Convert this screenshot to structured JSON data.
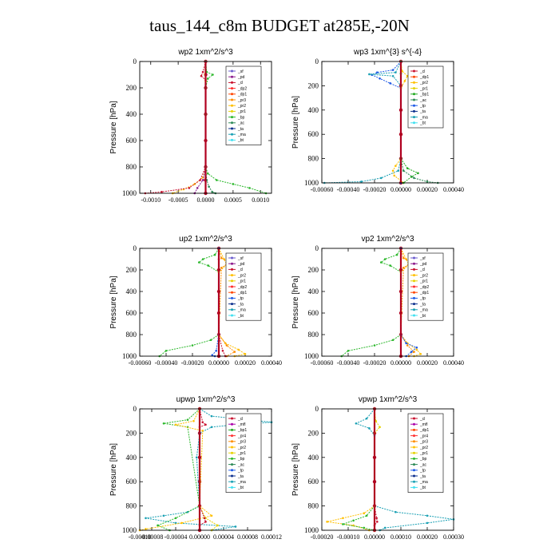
{
  "figure": {
    "title": "taus_144_c8m  BUDGET at285E,-20N"
  },
  "colors": {
    "sf": "#6a5acd",
    "pd": "#8b1a8b",
    "cl": "#c8102e",
    "dp2": "#ff2a2a",
    "dp1": "#ff4500",
    "pr3": "#ff8c00",
    "pr2": "#ffc000",
    "pr1": "#e6d200",
    "bp": "#2db82d",
    "ac": "#2e8b57",
    "tp": "#1e5ae6",
    "ta": "#0a2d8c",
    "ma": "#1aa0b4",
    "bt": "#40e0f0",
    "pr4": "#ff3030",
    "bp1": "#22aa22",
    "mfl": "#aa00aa",
    "budget": "#b00020"
  },
  "chart_data": [
    {
      "type": "line",
      "title": "wp2   1xm^2/s^3",
      "ylabel": "Pressure  [hPa]",
      "xlim": [
        -0.0012,
        0.0012
      ],
      "ylim": [
        1000,
        0
      ],
      "x_ticks": [
        "-0.0010",
        "-0.0005",
        "0.0000",
        "0.0005",
        "0.0010"
      ],
      "x_tick_values": [
        -0.001,
        -0.0005,
        0,
        0.0005,
        0.001
      ],
      "y_ticks": [
        "0",
        "200",
        "400",
        "600",
        "800",
        "1000"
      ],
      "legend": [
        "sf",
        "pd",
        "cl",
        "dp2",
        "dp1",
        "pr3",
        "pr2",
        "pr1",
        "bp",
        "ac",
        "ta",
        "ma",
        "bt"
      ],
      "legend_position": "top-right",
      "series": [
        {
          "name": "bt",
          "key": "budget",
          "p": [
            0,
            100,
            200,
            400,
            600,
            800,
            900,
            1000
          ],
          "x": [
            0,
            0,
            0,
            0,
            0,
            0,
            0,
            0
          ]
        },
        {
          "name": "pr1",
          "key": "bp",
          "p": [
            0,
            80,
            100,
            130,
            200,
            400,
            800,
            850,
            900,
            930,
            960,
            1000
          ],
          "x": [
            0,
            2e-05,
            0.00013,
            4e-05,
            0,
            0,
            0,
            4e-05,
            0.0002,
            0.0005,
            0.0008,
            0.0011
          ]
        },
        {
          "name": "bp",
          "key": "pr2",
          "p": [
            0,
            100,
            150,
            800,
            880,
            930,
            970,
            1000
          ],
          "x": [
            0,
            -1e-05,
            0,
            0,
            -5e-05,
            -0.0002,
            -0.0004,
            -0.0006
          ]
        },
        {
          "name": "dp1",
          "key": "cl",
          "p": [
            0,
            80,
            110,
            140,
            800,
            900,
            960,
            990,
            1000
          ],
          "x": [
            0,
            -5e-05,
            -8e-05,
            0,
            0,
            -0.0001,
            -0.0003,
            -0.0008,
            -0.0011
          ]
        },
        {
          "name": "pd",
          "key": "pd",
          "p": [
            0,
            100,
            800,
            900,
            960,
            1000
          ],
          "x": [
            0,
            0,
            0,
            -5e-05,
            -0.00015,
            -0.0002
          ]
        },
        {
          "name": "ac",
          "key": "ac",
          "p": [
            0,
            800,
            900,
            950,
            990,
            1000
          ],
          "x": [
            0,
            0,
            2e-05,
            6e-05,
            0.00012,
            0.00018
          ]
        }
      ]
    },
    {
      "type": "line",
      "title": "wp3   1xm^{3} s^{-4}",
      "ylabel": "Pressure  [hPa]",
      "xlim": [
        -0.0006,
        0.0004
      ],
      "ylim": [
        1000,
        0
      ],
      "x_ticks": [
        "-0.00060",
        "-0.00040",
        "-0.00020",
        "0.00000",
        "0.00020",
        "0.00040"
      ],
      "x_tick_values": [
        -0.0006,
        -0.0004,
        -0.0002,
        0,
        0.0002,
        0.0004
      ],
      "y_ticks": [
        "0",
        "200",
        "400",
        "600",
        "800",
        "1000"
      ],
      "legend": [
        "cl",
        "dp1",
        "pr2",
        "pr1",
        "bp1",
        "ac",
        "tp",
        "ta",
        "ma",
        "bt"
      ],
      "legend_position": "top-right",
      "series": [
        {
          "name": "bt",
          "key": "budget",
          "p": [
            0,
            200,
            400,
            600,
            800,
            1000
          ],
          "x": [
            0,
            0,
            0,
            0,
            0,
            0
          ]
        },
        {
          "name": "tp",
          "key": "tp",
          "p": [
            0,
            70,
            90,
            110,
            140,
            180,
            220,
            800,
            1000
          ],
          "x": [
            0,
            -6e-05,
            -0.00018,
            -0.00022,
            -0.00016,
            -8e-05,
            0,
            0,
            0
          ]
        },
        {
          "name": "ma",
          "key": "ma",
          "p": [
            0,
            90,
            105,
            120,
            200,
            800,
            900,
            960,
            990,
            1000
          ],
          "x": [
            0,
            -4e-05,
            -0.00024,
            -6e-05,
            0,
            0,
            -2e-05,
            -0.00015,
            -0.0003,
            -0.00058
          ]
        },
        {
          "name": "pr2",
          "key": "pr2",
          "p": [
            0,
            80,
            120,
            160,
            220,
            800,
            860,
            900,
            940,
            1000
          ],
          "x": [
            0,
            1e-05,
            5e-05,
            3e-05,
            0,
            0,
            -4e-05,
            -6e-05,
            -5e-05,
            2e-05
          ]
        },
        {
          "name": "bp1",
          "key": "bp1",
          "p": [
            0,
            100,
            800,
            880,
            920,
            950,
            1000
          ],
          "x": [
            0,
            0,
            0,
            5e-05,
            0.00013,
            8e-05,
            2e-05
          ]
        },
        {
          "name": "ac",
          "key": "ac",
          "p": [
            0,
            100,
            800,
            900,
            960,
            990,
            1000
          ],
          "x": [
            0,
            0,
            0,
            2e-05,
            0.0001,
            0.0002,
            0.00028
          ]
        }
      ]
    },
    {
      "type": "line",
      "title": "up2   1xm^2/s^3",
      "ylabel": "Pressure  [hPa]",
      "xlim": [
        -0.0006,
        0.0004
      ],
      "ylim": [
        1000,
        0
      ],
      "x_ticks": [
        "-0.00060",
        "-0.00040",
        "-0.00020",
        "0.00000",
        "0.00020",
        "0.00040"
      ],
      "x_tick_values": [
        -0.0006,
        -0.0004,
        -0.0002,
        0,
        0.0002,
        0.0004
      ],
      "y_ticks": [
        "0",
        "200",
        "400",
        "600",
        "800",
        "1000"
      ],
      "legend": [
        "sf",
        "pd",
        "cl",
        "pr2",
        "pr1",
        "dp2",
        "dp1",
        "tp",
        "ta",
        "ma",
        "bt"
      ],
      "legend_position": "top-right",
      "series": [
        {
          "name": "bt",
          "key": "budget",
          "p": [
            0,
            200,
            400,
            600,
            800,
            1000
          ],
          "x": [
            0,
            0,
            0,
            0,
            0,
            0
          ]
        },
        {
          "name": "dp1",
          "key": "bp",
          "p": [
            0,
            60,
            100,
            130,
            160,
            220,
            800,
            850,
            900,
            950,
            1000
          ],
          "x": [
            0,
            -3e-05,
            -0.00012,
            -0.00015,
            -8e-05,
            0,
            0,
            -6e-05,
            -0.0002,
            -0.0004,
            -0.00045
          ]
        },
        {
          "name": "pr2",
          "key": "pr2",
          "p": [
            0,
            100,
            150,
            220,
            800,
            880,
            940,
            980,
            1000
          ],
          "x": [
            0,
            4e-05,
            6e-05,
            0,
            0,
            5e-05,
            0.00015,
            0.0002,
            0.00012
          ]
        },
        {
          "name": "pr1",
          "key": "pr3",
          "p": [
            0,
            90,
            130,
            180,
            800,
            900,
            960,
            1000
          ],
          "x": [
            0,
            2e-05,
            8e-05,
            2e-05,
            0,
            6e-05,
            0.00012,
            6e-05
          ]
        },
        {
          "name": "cl",
          "key": "cl",
          "p": [
            0,
            100,
            800,
            950,
            1000
          ],
          "x": [
            0,
            0,
            0,
            3e-05,
            5e-05
          ]
        },
        {
          "name": "tp",
          "key": "tp",
          "p": [
            0,
            800,
            950,
            990,
            1000
          ],
          "x": [
            0,
            0,
            -2e-05,
            -5e-05,
            -3e-05
          ]
        }
      ]
    },
    {
      "type": "line",
      "title": "vp2   1xm^2/s^3",
      "ylabel": "Pressure  [hPa]",
      "xlim": [
        -0.0006,
        0.0004
      ],
      "ylim": [
        1000,
        0
      ],
      "x_ticks": [
        "-0.00060",
        "-0.00040",
        "-0.00020",
        "0.00000",
        "0.00020",
        "0.00040"
      ],
      "x_tick_values": [
        -0.0006,
        -0.0004,
        -0.0002,
        0,
        0.0002,
        0.0004
      ],
      "y_ticks": [
        "0",
        "200",
        "400",
        "600",
        "800",
        "1000"
      ],
      "legend": [
        "sf",
        "pd",
        "cl",
        "pr2",
        "pr1",
        "dp2",
        "dp1",
        "tp",
        "ta",
        "ma",
        "bt"
      ],
      "legend_position": "top-right",
      "series": [
        {
          "name": "bt",
          "key": "budget",
          "p": [
            0,
            200,
            400,
            600,
            800,
            1000
          ],
          "x": [
            0,
            0,
            0,
            0,
            0,
            0
          ]
        },
        {
          "name": "dp1",
          "key": "bp",
          "p": [
            0,
            60,
            100,
            130,
            160,
            220,
            800,
            850,
            900,
            950,
            1000
          ],
          "x": [
            0,
            -3e-05,
            -0.00012,
            -0.00015,
            -8e-05,
            0,
            0,
            -6e-05,
            -0.0002,
            -0.0004,
            -0.00045
          ]
        },
        {
          "name": "pr2",
          "key": "pr2",
          "p": [
            0,
            100,
            150,
            220,
            800,
            880,
            940,
            980,
            1000
          ],
          "x": [
            0,
            4e-05,
            6e-05,
            0,
            0,
            5e-05,
            0.00012,
            0.00015,
            0.0001
          ]
        },
        {
          "name": "pr1",
          "key": "pr3",
          "p": [
            0,
            90,
            130,
            180,
            800,
            900,
            960,
            1000
          ],
          "x": [
            0,
            2e-05,
            8e-05,
            2e-05,
            0,
            5e-05,
            0.0001,
            6e-05
          ]
        },
        {
          "name": "tp",
          "key": "tp",
          "p": [
            0,
            800,
            880,
            920,
            960,
            1000
          ],
          "x": [
            0,
            0,
            4e-05,
            0.00012,
            8e-05,
            4e-05
          ]
        }
      ]
    },
    {
      "type": "line",
      "title": "upwp   1xm^2/s^3",
      "ylabel": "Pressure  [hPa]",
      "xlim": [
        -0.0001,
        0.00012
      ],
      "ylim": [
        1000,
        0
      ],
      "x_ticks": [
        "-0.00010",
        "-0.00008",
        "-0.00004",
        "0.00000",
        "0.00004",
        "0.00008",
        "0.00012"
      ],
      "x_tick_values": [
        -0.0001,
        -8e-05,
        -4e-05,
        0,
        4e-05,
        8e-05,
        0.00012
      ],
      "y_ticks": [
        "0",
        "200",
        "400",
        "600",
        "800",
        "1000"
      ],
      "legend": [
        "cl",
        "mfl",
        "bp1",
        "pr4",
        "pr3",
        "pr2",
        "pr1",
        "bp",
        "ac",
        "tp",
        "ta",
        "ma",
        "bt"
      ],
      "legend_position": "top-right",
      "series": [
        {
          "name": "bt",
          "key": "budget",
          "p": [
            0,
            200,
            400,
            600,
            800,
            1000
          ],
          "x": [
            0,
            0,
            0,
            0,
            0,
            0
          ]
        },
        {
          "name": "ma",
          "key": "ma",
          "p": [
            0,
            60,
            90,
            110,
            130,
            150,
            200,
            400,
            800,
            850,
            880,
            900,
            940,
            970,
            1000
          ],
          "x": [
            0,
            2e-05,
            8e-05,
            0.00012,
            6e-05,
            2e-05,
            0,
            -5e-06,
            0,
            -2e-05,
            -6e-05,
            -9e-05,
            -4e-05,
            6e-05,
            2e-05
          ]
        },
        {
          "name": "bp",
          "key": "bp",
          "p": [
            0,
            90,
            120,
            150,
            800,
            900,
            960,
            1000
          ],
          "x": [
            0,
            -2e-05,
            -6e-05,
            -2e-05,
            0,
            -4e-05,
            -7e-05,
            -5e-05
          ]
        },
        {
          "name": "pr2",
          "key": "pr2",
          "p": [
            0,
            100,
            130,
            180,
            800,
            880,
            940,
            990,
            1000
          ],
          "x": [
            0,
            -1e-05,
            -4e-05,
            5e-06,
            0,
            2e-05,
            -3e-05,
            -9e-05,
            -0.0001
          ]
        },
        {
          "name": "pr1",
          "key": "pr1",
          "p": [
            0,
            800,
            900,
            960,
            1000
          ],
          "x": [
            0,
            0,
            1e-05,
            3e-05,
            2e-05
          ]
        },
        {
          "name": "cl",
          "key": "cl",
          "p": [
            0,
            110,
            130,
            150,
            800,
            900,
            930,
            960,
            1000
          ],
          "x": [
            0,
            5e-06,
            1e-05,
            0,
            0,
            8e-06,
            1e-05,
            0,
            0
          ]
        }
      ]
    },
    {
      "type": "line",
      "title": "vpwp   1xm^2/s^3",
      "ylabel": "Pressure  [hPa]",
      "xlim": [
        -0.0002,
        0.0003
      ],
      "ylim": [
        1000,
        0
      ],
      "x_ticks": [
        "-0.00020",
        "-0.00010",
        "0.00000",
        "0.00010",
        "0.00020",
        "0.00030"
      ],
      "x_tick_values": [
        -0.0002,
        -0.0001,
        0,
        0.0001,
        0.0002,
        0.0003
      ],
      "y_ticks": [
        "0",
        "200",
        "400",
        "600",
        "800",
        "1000"
      ],
      "legend": [
        "cl",
        "mfl",
        "dp1",
        "pr4",
        "pr3",
        "pr2",
        "pr1",
        "bp",
        "ac",
        "tp",
        "ta",
        "ma",
        "bt"
      ],
      "legend_position": "top-right",
      "series": [
        {
          "name": "bt",
          "key": "budget",
          "p": [
            0,
            200,
            400,
            600,
            800,
            1000
          ],
          "x": [
            0,
            0,
            0,
            0,
            0,
            0
          ]
        },
        {
          "name": "ma",
          "key": "ma",
          "p": [
            0,
            80,
            120,
            160,
            220,
            800,
            850,
            880,
            910,
            940,
            980,
            1000
          ],
          "x": [
            0,
            -3e-05,
            -7e-05,
            -2e-05,
            0,
            0,
            8e-05,
            0.0002,
            0.0003,
            0.0002,
            4e-05,
            2e-05
          ]
        },
        {
          "name": "pr2",
          "key": "pr2",
          "p": [
            0,
            800,
            860,
            900,
            930,
            960,
            1000
          ],
          "x": [
            0,
            0,
            -4e-05,
            -0.00012,
            -0.00018,
            -8e-05,
            -2e-05
          ]
        },
        {
          "name": "bp",
          "key": "bp",
          "p": [
            0,
            800,
            880,
            920,
            950,
            980,
            1000
          ],
          "x": [
            0,
            0,
            -3e-05,
            -8e-05,
            -0.00012,
            -4e-05,
            0
          ]
        },
        {
          "name": "pr1",
          "key": "pr1",
          "p": [
            0,
            100,
            150,
            200,
            800,
            1000
          ],
          "x": [
            0,
            5e-06,
            2e-05,
            0,
            0,
            0
          ]
        },
        {
          "name": "cl",
          "key": "cl",
          "p": [
            0,
            800,
            900,
            930,
            960,
            1000
          ],
          "x": [
            0,
            0,
            8e-06,
            1e-05,
            0,
            0
          ]
        }
      ]
    }
  ]
}
